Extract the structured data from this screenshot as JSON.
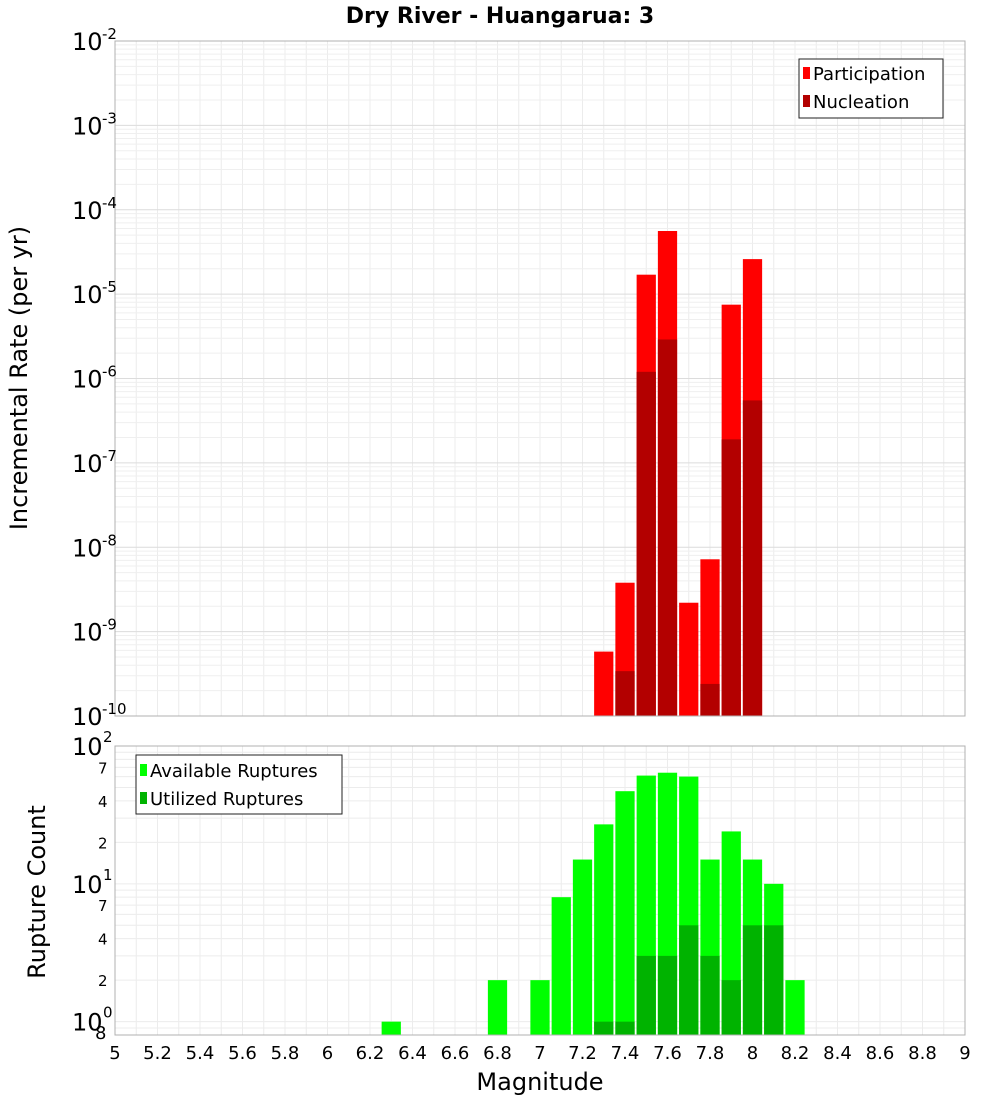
{
  "chart_data": [
    {
      "type": "bar",
      "title": "Dry River - Huangarua: 3",
      "ylabel": "Incremental Rate (per yr)",
      "xlabel": "",
      "yscale": "log",
      "ylim": [
        1e-10,
        0.01
      ],
      "xlim": [
        5,
        9
      ],
      "y_tick_exponents": [
        "-10",
        "-9",
        "-8",
        "-7",
        "-6",
        "-5",
        "-4",
        "-3",
        "-2"
      ],
      "grid": true,
      "legend_position": "top-right",
      "bin_width": 0.1,
      "x": [
        7.3,
        7.4,
        7.5,
        7.6,
        7.7,
        7.8,
        7.9,
        8.0
      ],
      "series": [
        {
          "name": "Participation",
          "color": "#ff0000",
          "values": [
            5.8e-10,
            3.8e-09,
            1.7e-05,
            5.6e-05,
            2.2e-09,
            7.2e-09,
            7.5e-06,
            2.6e-05
          ]
        },
        {
          "name": "Nucleation",
          "color": "#b30000",
          "values": [
            0,
            3.4e-10,
            1.2e-06,
            2.9e-06,
            0,
            2.4e-10,
            1.9e-07,
            5.5e-07
          ]
        }
      ]
    },
    {
      "type": "bar",
      "title": "",
      "ylabel": "Rupture Count",
      "xlabel": "Magnitude",
      "yscale": "log",
      "ylim": [
        0.8,
        100
      ],
      "xlim": [
        5,
        9
      ],
      "x_ticks": [
        "5",
        "5.2",
        "5.4",
        "5.6",
        "5.8",
        "6",
        "6.2",
        "6.4",
        "6.6",
        "6.8",
        "7",
        "7.2",
        "7.4",
        "7.6",
        "7.8",
        "8",
        "8.2",
        "8.4",
        "8.6",
        "8.8",
        "9"
      ],
      "y_major_ticks": [
        {
          "value": 1,
          "base": "10",
          "exp": "0"
        },
        {
          "value": 10,
          "base": "10",
          "exp": "1"
        },
        {
          "value": 100,
          "base": "10",
          "exp": "2"
        }
      ],
      "y_minor_ticks": [
        {
          "value": 0.8,
          "label": "8"
        },
        {
          "value": 2,
          "label": "2"
        },
        {
          "value": 4,
          "label": "4"
        },
        {
          "value": 7,
          "label": "7"
        },
        {
          "value": 20,
          "label": "2"
        },
        {
          "value": 40,
          "label": "4"
        },
        {
          "value": 70,
          "label": "7"
        }
      ],
      "grid": true,
      "legend_position": "top-left",
      "bin_width": 0.1,
      "x": [
        6.3,
        6.8,
        7.0,
        7.1,
        7.2,
        7.3,
        7.4,
        7.5,
        7.6,
        7.7,
        7.8,
        7.9,
        8.0,
        8.1,
        8.2
      ],
      "series": [
        {
          "name": "Available Ruptures",
          "color": "#00ff00",
          "values": [
            1,
            2,
            2,
            8,
            15,
            27,
            47,
            61,
            64,
            60,
            15,
            24,
            15,
            10,
            2
          ]
        },
        {
          "name": "Utilized Ruptures",
          "color": "#00b300",
          "values": [
            0,
            0,
            0,
            0,
            0,
            1,
            1,
            3,
            3,
            5,
            3,
            2,
            5,
            5,
            0
          ]
        }
      ]
    }
  ]
}
